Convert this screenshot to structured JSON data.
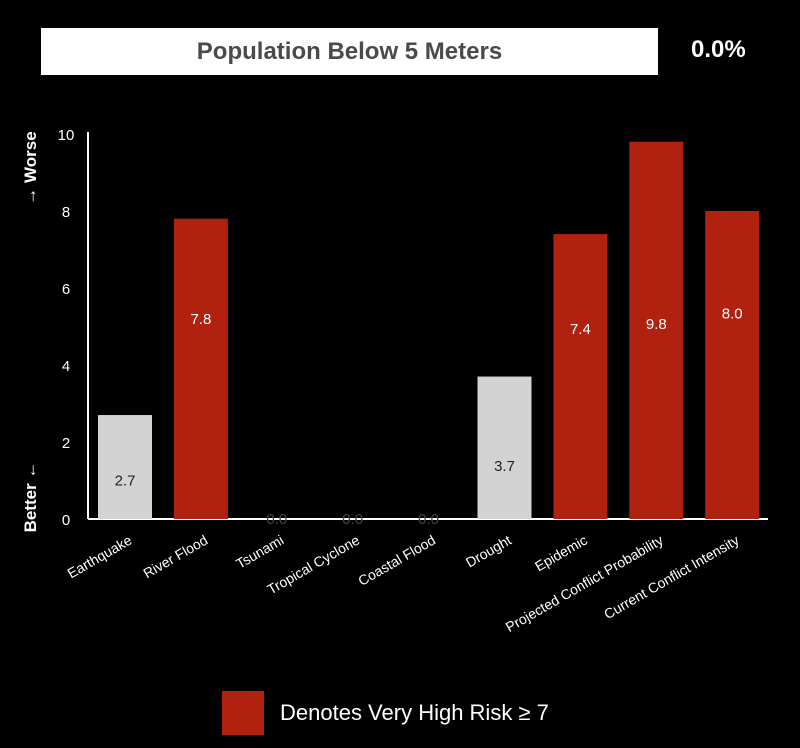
{
  "header": {
    "title": "Population Below 5 Meters",
    "value": "0.0%"
  },
  "colors": {
    "high_risk": "#b0220f",
    "normal": "#d3d3d3",
    "background": "#000000",
    "header_text": "#4a4a4a"
  },
  "chart_data": {
    "type": "bar",
    "categories": [
      "Earthquake",
      "River Flood",
      "Tsunami",
      "Tropical Cyclone",
      "Coastal Flood",
      "Drought",
      "Epidemic",
      "Projected Conflict Probability",
      "Current Conflict Intensity"
    ],
    "values": [
      2.7,
      7.8,
      0.0,
      0.0,
      0.0,
      3.7,
      7.4,
      9.8,
      8.0
    ],
    "value_labels": [
      "2.7",
      "7.8",
      "0.0",
      "0.0",
      "0.0",
      "3.7",
      "7.4",
      "9.8",
      "8.0"
    ],
    "high_risk_threshold": 7,
    "ylim": [
      0,
      10
    ],
    "yticks": [
      "0",
      "2",
      "4",
      "6",
      "8",
      "10"
    ],
    "ylabel_top": "→ Worse",
    "ylabel_bottom": "Better ←",
    "grid": false
  },
  "legend": {
    "label": "Denotes Very High Risk ≥ 7"
  }
}
